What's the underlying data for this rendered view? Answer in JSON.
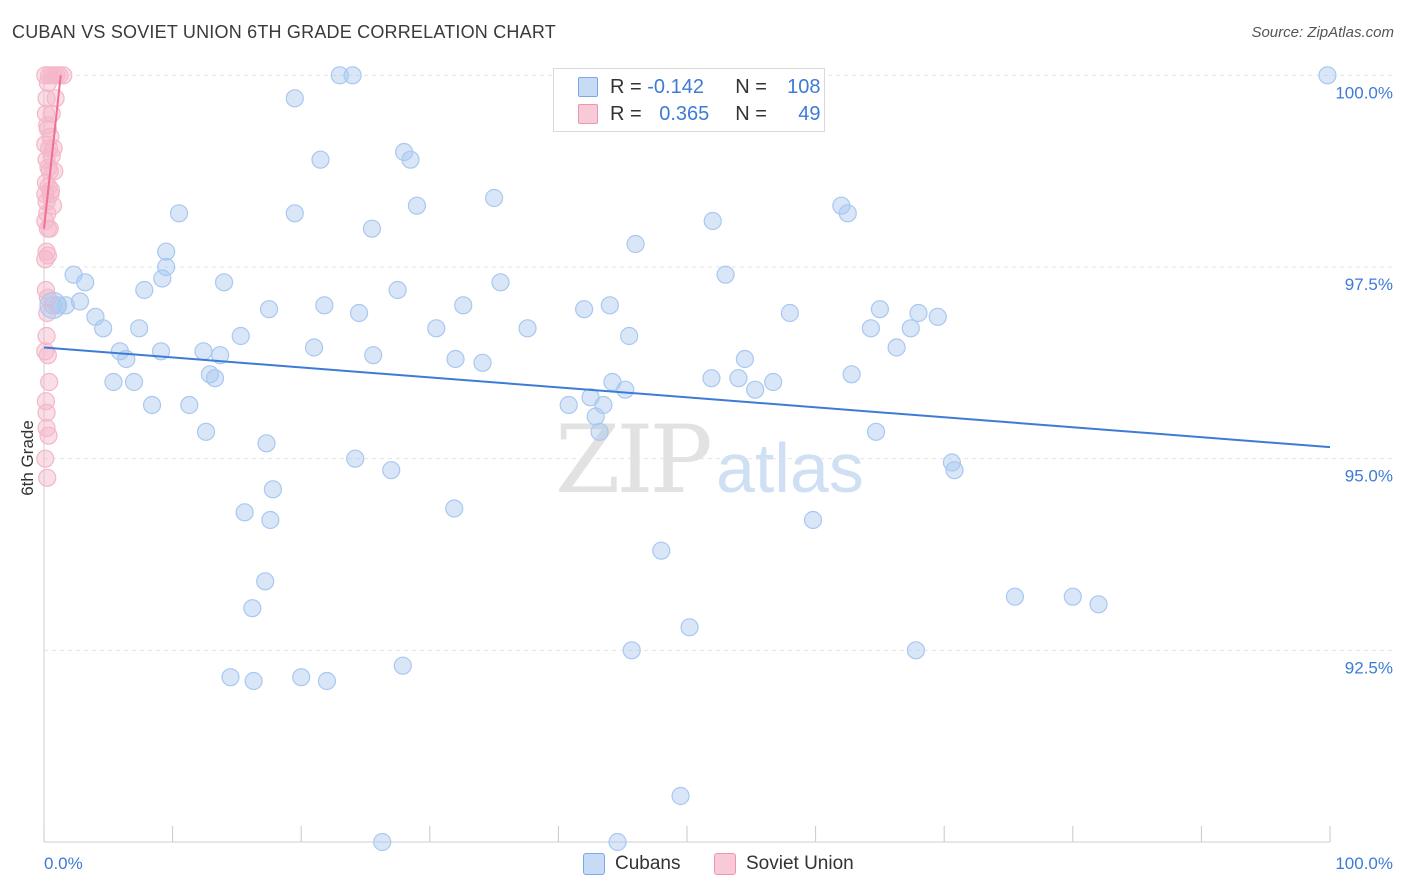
{
  "title": "CUBAN VS SOVIET UNION 6TH GRADE CORRELATION CHART",
  "source": "Source: ZipAtlas.com",
  "watermark": {
    "zip": "ZIP",
    "atlas": "atlas"
  },
  "legend": {
    "rows": [
      {
        "r_label": "R = ",
        "r_value": "-0.142",
        "n_label": "N = ",
        "n_value": "108",
        "color": "#a9c8f0"
      },
      {
        "r_label": "R = ",
        "r_value": "0.365",
        "n_label": "N = ",
        "n_value": "49",
        "color": "#f4b6c8"
      }
    ]
  },
  "bottom_legend": [
    {
      "label": "Cubans",
      "color": "#a9c8f0"
    },
    {
      "label": "Soviet Union",
      "color": "#f4b6c8"
    }
  ],
  "chart_data": {
    "type": "scatter",
    "title": "CUBAN VS SOVIET UNION 6TH GRADE CORRELATION CHART",
    "xlabel": "",
    "ylabel": "6th Grade",
    "xlim": [
      0,
      100
    ],
    "ylim": [
      90.0,
      100.2
    ],
    "x_tick_labels": [
      {
        "value": 0,
        "label": "0.0%"
      },
      {
        "value": 100,
        "label": "100.0%"
      }
    ],
    "y_tick_labels": [
      {
        "value": 92.5,
        "label": "92.5%"
      },
      {
        "value": 95.0,
        "label": "95.0%"
      },
      {
        "value": 97.5,
        "label": "97.5%"
      },
      {
        "value": 100.0,
        "label": "100.0%"
      }
    ],
    "series": [
      {
        "name": "Cubans",
        "color": "#3d7bd6",
        "fill": "#a9c8f0",
        "trend": {
          "x": [
            0,
            100
          ],
          "y": [
            96.45,
            95.15
          ]
        },
        "points": [
          [
            23.0,
            100.0
          ],
          [
            24.0,
            100.0
          ],
          [
            99.8,
            100.0
          ],
          [
            19.5,
            99.7
          ],
          [
            21.5,
            98.9
          ],
          [
            28.0,
            99.0
          ],
          [
            28.5,
            98.9
          ],
          [
            35.0,
            98.4
          ],
          [
            29.0,
            98.3
          ],
          [
            10.5,
            98.2
          ],
          [
            19.5,
            98.2
          ],
          [
            25.5,
            98.0
          ],
          [
            52.0,
            98.1
          ],
          [
            62.0,
            98.3
          ],
          [
            62.5,
            98.2
          ],
          [
            46.0,
            97.8
          ],
          [
            9.5,
            97.7
          ],
          [
            9.5,
            97.5
          ],
          [
            2.3,
            97.4
          ],
          [
            3.2,
            97.3
          ],
          [
            9.2,
            97.35
          ],
          [
            14.0,
            97.3
          ],
          [
            35.5,
            97.3
          ],
          [
            53.0,
            97.4
          ],
          [
            7.8,
            97.2
          ],
          [
            27.5,
            97.2
          ],
          [
            2.8,
            97.05
          ],
          [
            1.1,
            97.0
          ],
          [
            1.7,
            97.0
          ],
          [
            0.7,
            97.0
          ],
          [
            21.8,
            97.0
          ],
          [
            32.6,
            97.0
          ],
          [
            44.0,
            97.0
          ],
          [
            17.5,
            96.95
          ],
          [
            24.5,
            96.9
          ],
          [
            42.0,
            96.95
          ],
          [
            58.0,
            96.9
          ],
          [
            65.0,
            96.95
          ],
          [
            68.0,
            96.9
          ],
          [
            4.0,
            96.85
          ],
          [
            4.6,
            96.7
          ],
          [
            7.4,
            96.7
          ],
          [
            15.3,
            96.6
          ],
          [
            30.5,
            96.7
          ],
          [
            37.6,
            96.7
          ],
          [
            45.5,
            96.6
          ],
          [
            64.3,
            96.7
          ],
          [
            67.4,
            96.7
          ],
          [
            69.5,
            96.85
          ],
          [
            21.0,
            96.45
          ],
          [
            5.9,
            96.4
          ],
          [
            9.1,
            96.4
          ],
          [
            12.4,
            96.4
          ],
          [
            13.7,
            96.35
          ],
          [
            25.6,
            96.35
          ],
          [
            32.0,
            96.3
          ],
          [
            34.1,
            96.25
          ],
          [
            54.5,
            96.3
          ],
          [
            66.3,
            96.45
          ],
          [
            6.4,
            96.3
          ],
          [
            12.9,
            96.1
          ],
          [
            13.3,
            96.05
          ],
          [
            5.4,
            96.0
          ],
          [
            7.0,
            96.0
          ],
          [
            44.2,
            96.0
          ],
          [
            51.9,
            96.05
          ],
          [
            54.0,
            96.05
          ],
          [
            56.7,
            96.0
          ],
          [
            62.8,
            96.1
          ],
          [
            55.3,
            95.9
          ],
          [
            42.5,
            95.8
          ],
          [
            45.2,
            95.9
          ],
          [
            43.5,
            95.7
          ],
          [
            8.4,
            95.7
          ],
          [
            11.3,
            95.7
          ],
          [
            40.8,
            95.7
          ],
          [
            42.9,
            95.55
          ],
          [
            12.6,
            95.35
          ],
          [
            43.2,
            95.35
          ],
          [
            64.7,
            95.35
          ],
          [
            17.3,
            95.2
          ],
          [
            24.2,
            95.0
          ],
          [
            27.0,
            94.85
          ],
          [
            70.6,
            94.95
          ],
          [
            70.8,
            94.85
          ],
          [
            17.8,
            94.6
          ],
          [
            15.6,
            94.3
          ],
          [
            17.6,
            94.2
          ],
          [
            31.9,
            94.35
          ],
          [
            59.8,
            94.2
          ],
          [
            48.0,
            93.8
          ],
          [
            17.2,
            93.4
          ],
          [
            16.2,
            93.05
          ],
          [
            75.5,
            93.2
          ],
          [
            80.0,
            93.2
          ],
          [
            82.0,
            93.1
          ],
          [
            50.2,
            92.8
          ],
          [
            45.7,
            92.5
          ],
          [
            67.8,
            92.5
          ],
          [
            14.5,
            92.15
          ],
          [
            16.3,
            92.1
          ],
          [
            20.0,
            92.15
          ],
          [
            22.0,
            92.1
          ],
          [
            27.9,
            92.3
          ],
          [
            49.5,
            90.6
          ],
          [
            26.3,
            90.0
          ],
          [
            44.6,
            90.0
          ]
        ]
      },
      {
        "name": "Soviet Union",
        "color": "#ef6f97",
        "fill": "#f4b6c8",
        "trend": {
          "x": [
            0,
            1.3
          ],
          "y": [
            98.0,
            100.0
          ]
        },
        "points": [
          [
            0.1,
            100.0
          ],
          [
            0.4,
            100.0
          ],
          [
            0.7,
            100.0
          ],
          [
            0.95,
            100.0
          ],
          [
            1.2,
            100.0
          ],
          [
            1.5,
            100.0
          ],
          [
            0.3,
            99.9
          ],
          [
            0.2,
            99.7
          ],
          [
            0.9,
            99.7
          ],
          [
            0.15,
            99.5
          ],
          [
            0.3,
            99.3
          ],
          [
            0.1,
            99.1
          ],
          [
            0.4,
            99.05
          ],
          [
            0.6,
            98.95
          ],
          [
            0.2,
            98.9
          ],
          [
            0.35,
            98.8
          ],
          [
            0.45,
            98.75
          ],
          [
            0.8,
            98.75
          ],
          [
            0.15,
            98.6
          ],
          [
            0.1,
            98.45
          ],
          [
            0.5,
            98.45
          ],
          [
            0.25,
            98.2
          ],
          [
            0.1,
            98.1
          ],
          [
            0.3,
            98.0
          ],
          [
            0.2,
            97.7
          ],
          [
            0.1,
            97.6
          ],
          [
            0.15,
            97.2
          ],
          [
            0.3,
            97.1
          ],
          [
            0.2,
            96.6
          ],
          [
            0.1,
            96.4
          ],
          [
            0.4,
            96.0
          ],
          [
            0.15,
            95.75
          ],
          [
            0.2,
            95.4
          ],
          [
            0.35,
            95.3
          ],
          [
            0.1,
            95.0
          ],
          [
            0.25,
            94.75
          ],
          [
            0.6,
            99.5
          ],
          [
            0.25,
            99.35
          ],
          [
            0.5,
            99.2
          ],
          [
            0.75,
            99.05
          ],
          [
            0.35,
            98.55
          ],
          [
            0.55,
            98.5
          ],
          [
            0.2,
            98.35
          ],
          [
            0.7,
            98.3
          ],
          [
            0.45,
            98.0
          ],
          [
            0.3,
            97.65
          ],
          [
            0.25,
            96.9
          ],
          [
            0.3,
            96.35
          ],
          [
            0.2,
            95.6
          ]
        ]
      }
    ]
  }
}
